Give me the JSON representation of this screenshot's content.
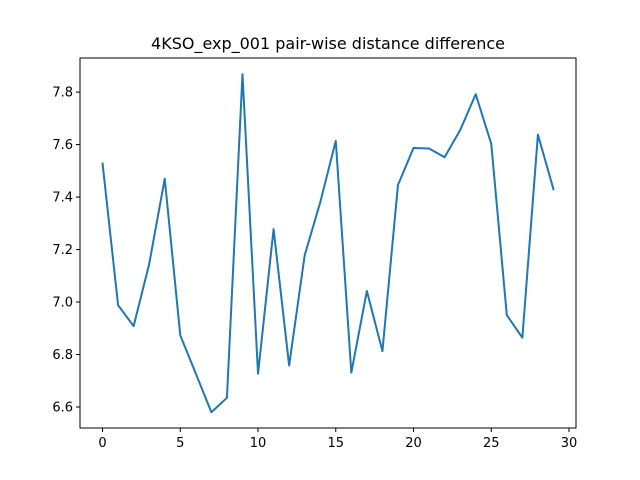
{
  "chart_data": {
    "type": "line",
    "title": "4KSO_exp_001 pair-wise distance difference",
    "xlabel": "",
    "ylabel": "",
    "xlim": [
      -1.45,
      30.45
    ],
    "ylim": [
      6.52,
      7.93
    ],
    "grid": false,
    "x_ticks": [
      0,
      5,
      10,
      15,
      20,
      25,
      30
    ],
    "y_ticks": [
      6.6,
      6.8,
      7.0,
      7.2,
      7.4,
      7.6,
      7.8
    ],
    "x_tick_labels": [
      "0",
      "5",
      "10",
      "15",
      "20",
      "25",
      "30"
    ],
    "y_tick_labels": [
      "6.6",
      "6.8",
      "7.0",
      "7.2",
      "7.4",
      "7.6",
      "7.8"
    ],
    "series": [
      {
        "color": "#1f77b4",
        "x": [
          0,
          1,
          2,
          3,
          4,
          5,
          6,
          7,
          8,
          9,
          10,
          11,
          12,
          13,
          14,
          15,
          16,
          17,
          18,
          19,
          20,
          21,
          22,
          23,
          24,
          25,
          26,
          27,
          28,
          29
        ],
        "values": [
          7.528,
          6.988,
          6.908,
          7.145,
          7.47,
          6.873,
          6.727,
          6.58,
          6.635,
          7.868,
          6.727,
          7.278,
          6.758,
          7.178,
          7.38,
          7.614,
          6.731,
          7.042,
          6.813,
          7.446,
          7.587,
          7.585,
          7.552,
          7.655,
          7.792,
          7.603,
          6.95,
          6.864,
          7.638,
          7.43
        ]
      }
    ]
  }
}
